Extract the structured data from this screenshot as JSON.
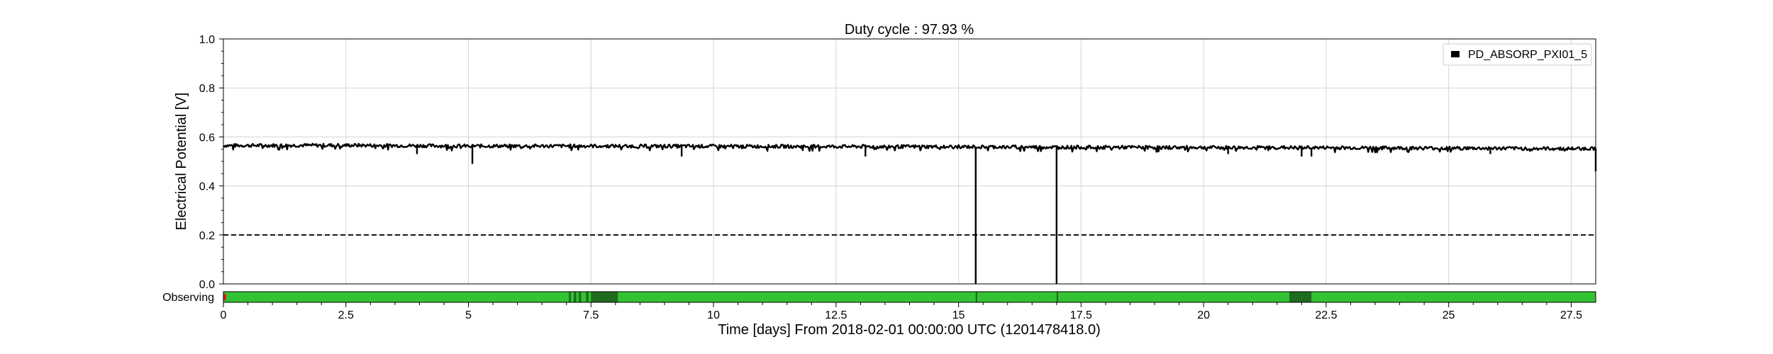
{
  "chart_data": {
    "type": "line",
    "title": "Duty cycle : 97.93 %",
    "xlabel": "Time [days] From 2018-02-01 00:00:00 UTC (1201478418.0)",
    "ylabel": "Electrical Potential [V]",
    "xlim": [
      0,
      28
    ],
    "ylim": [
      0,
      1.0
    ],
    "x_ticks": [
      0,
      2.5,
      5,
      7.5,
      10,
      12.5,
      15,
      17.5,
      20,
      22.5,
      25,
      27.5
    ],
    "x_tick_labels": [
      "0",
      "2.5",
      "5",
      "7.5",
      "10",
      "12.5",
      "15",
      "17.5",
      "20",
      "22.5",
      "25",
      "27.5"
    ],
    "y_ticks": [
      0,
      0.2,
      0.4,
      0.6,
      0.8,
      1.0
    ],
    "y_tick_labels": [
      "0.0",
      "0.2",
      "0.4",
      "0.6",
      "0.8",
      "1.0"
    ],
    "grid": true,
    "legend_position": "top-right",
    "series": [
      {
        "name": "PD_ABSORP_PXI01_5",
        "color": "#000000",
        "baseline_points": [
          [
            0,
            0.565
          ],
          [
            2.5,
            0.566
          ],
          [
            5,
            0.563
          ],
          [
            7.5,
            0.563
          ],
          [
            10,
            0.562
          ],
          [
            12.5,
            0.561
          ],
          [
            15,
            0.56
          ],
          [
            17.5,
            0.558
          ],
          [
            20,
            0.557
          ],
          [
            22.5,
            0.556
          ],
          [
            25,
            0.554
          ],
          [
            27.5,
            0.552
          ],
          [
            28,
            0.553
          ]
        ],
        "dips": [
          [
            3.95,
            0.53
          ],
          [
            5.08,
            0.49
          ],
          [
            9.35,
            0.52
          ],
          [
            13.1,
            0.52
          ],
          [
            15.35,
            0.0
          ],
          [
            17.0,
            0.0
          ],
          [
            20.5,
            0.53
          ],
          [
            22.0,
            0.52
          ],
          [
            22.2,
            0.52
          ],
          [
            25.85,
            0.53
          ],
          [
            28.0,
            0.46
          ]
        ]
      }
    ],
    "threshold": {
      "y": 0.2,
      "style": "dashed",
      "color": "#000000"
    },
    "segment_bar": {
      "label": "Observing",
      "base_color": "#33c233",
      "dark_color": "#1f6b1f",
      "start_marker_color": "#e02020",
      "dark_intervals": [
        [
          7.05,
          7.09
        ],
        [
          7.15,
          7.2
        ],
        [
          7.25,
          7.3
        ],
        [
          7.4,
          7.45
        ],
        [
          7.5,
          8.05
        ],
        [
          15.35,
          15.38
        ],
        [
          17.0,
          17.03
        ],
        [
          21.75,
          22.2
        ]
      ]
    }
  }
}
